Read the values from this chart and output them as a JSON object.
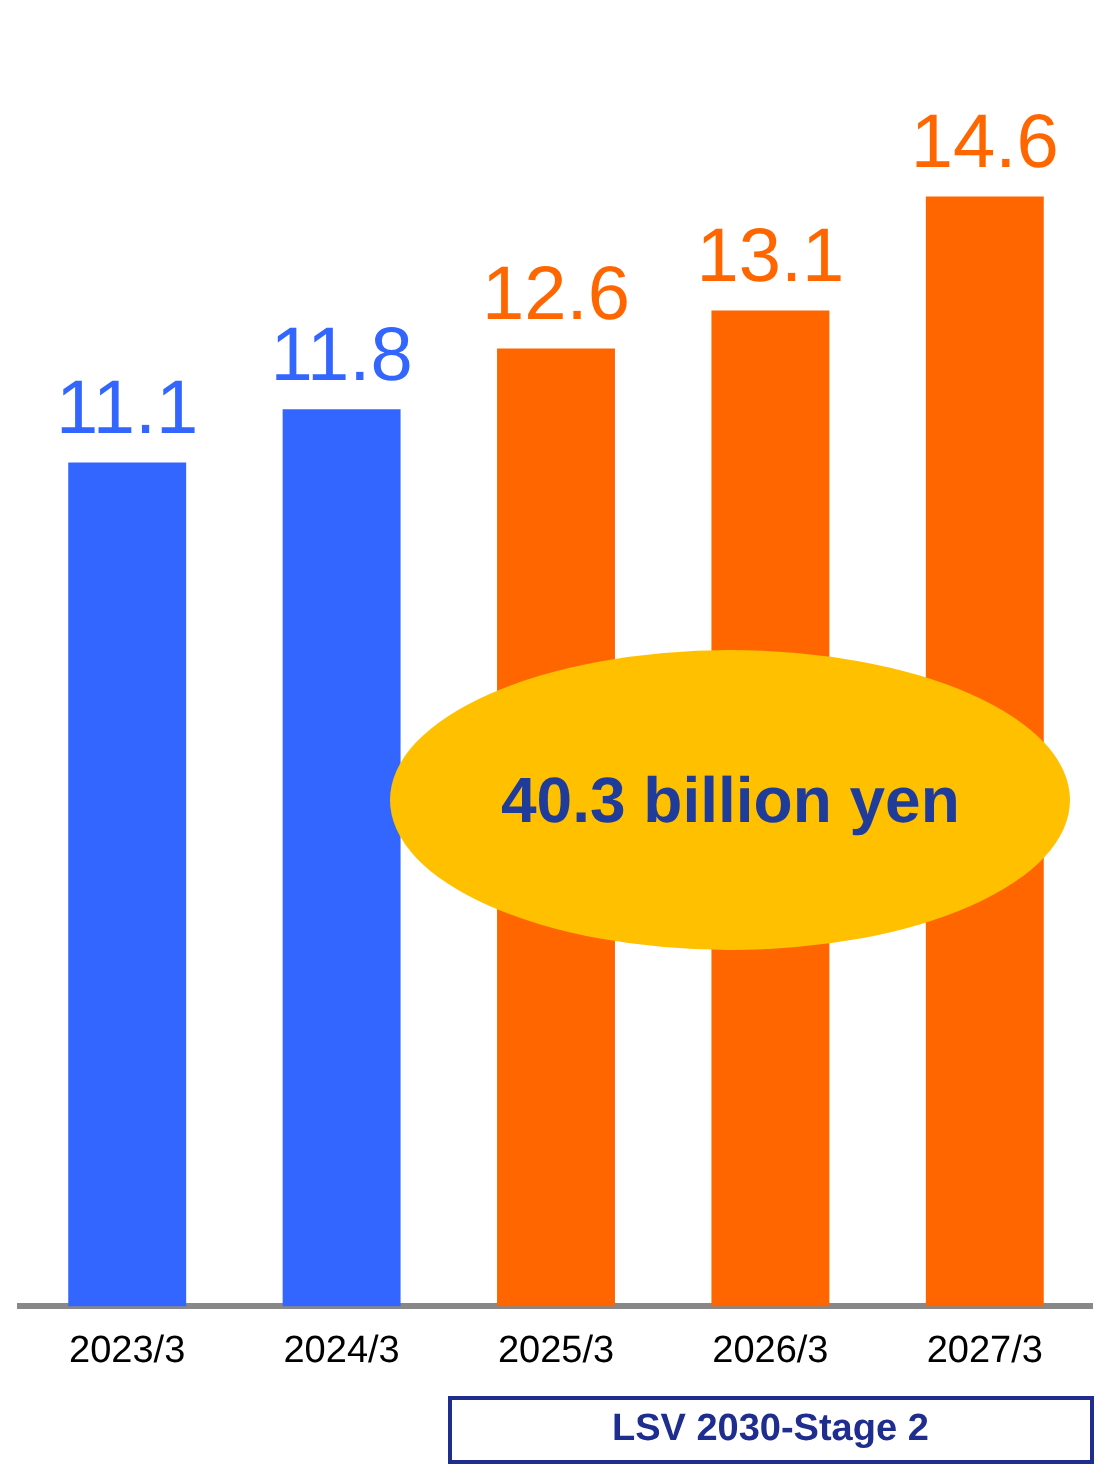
{
  "chart_data": {
    "type": "bar",
    "categories": [
      "2023/3",
      "2024/3",
      "2025/3",
      "2026/3",
      "2027/3"
    ],
    "values": [
      11.1,
      11.8,
      12.6,
      13.1,
      14.6
    ],
    "colors": [
      "#3366ff",
      "#3366ff",
      "#ff6600",
      "#ff6600",
      "#ff6600"
    ],
    "data_labels": true,
    "annotations": [
      "40.3 billion yen",
      "LSV 2030-Stage 2"
    ]
  }
}
